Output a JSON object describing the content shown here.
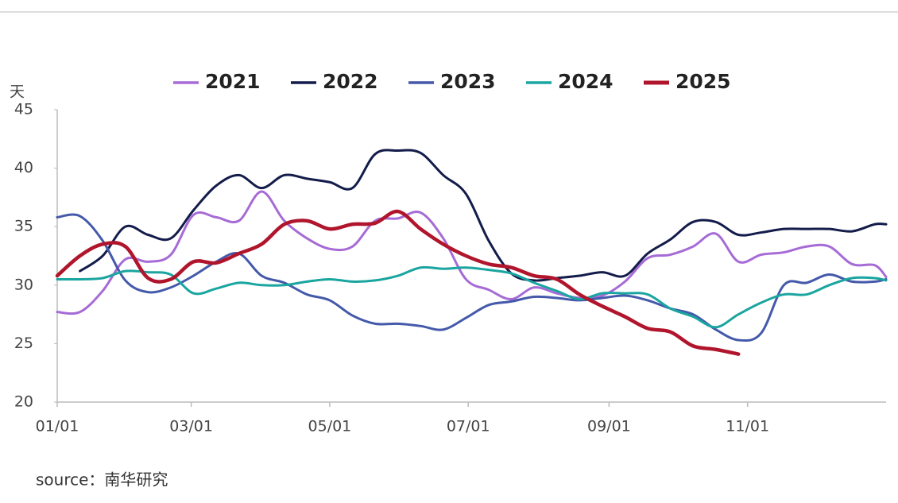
{
  "chart_data": {
    "type": "line",
    "ylabel": "天",
    "source": "source：南华研究",
    "x": [
      0,
      10,
      20,
      30,
      40,
      50,
      60,
      70,
      80,
      90,
      100,
      110,
      120,
      130,
      140,
      150,
      160,
      170,
      180,
      190,
      200,
      210,
      220,
      230,
      240,
      250,
      260,
      270,
      280,
      290,
      300,
      310,
      320,
      330,
      340,
      350,
      360,
      365
    ],
    "xlim": [
      0,
      365
    ],
    "xticks": [
      {
        "value": 0,
        "label": "01/01"
      },
      {
        "value": 59,
        "label": "03/01"
      },
      {
        "value": 120,
        "label": "05/01"
      },
      {
        "value": 181,
        "label": "07/01"
      },
      {
        "value": 243,
        "label": "09/01"
      },
      {
        "value": 304,
        "label": "11/01"
      }
    ],
    "ylim": [
      20,
      45
    ],
    "yticks": [
      20,
      25,
      30,
      35,
      40,
      45
    ],
    "legend": "top",
    "series": [
      {
        "name": "2021",
        "color": "#a66bd6",
        "values": [
          27.7,
          27.7,
          29.5,
          32.2,
          32,
          32.6,
          36,
          35.8,
          35.5,
          38,
          35.5,
          34,
          33.1,
          33.3,
          35.5,
          35.7,
          36.2,
          34,
          30.5,
          29.6,
          28.8,
          29.8,
          29.3,
          28.9,
          29.1,
          30.3,
          32.3,
          32.6,
          33.3,
          34.4,
          32,
          32.6,
          32.8,
          33.3,
          33.3,
          31.8,
          31.7,
          30.7
        ]
      },
      {
        "name": "2022",
        "color": "#131c4a",
        "values": [
          null,
          31.2,
          32.5,
          35.0,
          34.3,
          34.0,
          36.4,
          38.5,
          39.4,
          38.3,
          39.4,
          39.1,
          38.8,
          38.3,
          41.2,
          41.5,
          41.3,
          39.4,
          37.8,
          33.8,
          31.0,
          30.4,
          30.6,
          30.8,
          31.1,
          30.8,
          32.7,
          33.9,
          35.4,
          35.4,
          34.3,
          34.5,
          34.8,
          34.8,
          34.8,
          34.6,
          35.2,
          35.2
        ]
      },
      {
        "name": "2023",
        "color": "#4459aa",
        "values": [
          35.8,
          35.9,
          33.8,
          30.4,
          29.4,
          29.8,
          30.8,
          32,
          32.7,
          30.8,
          30.2,
          29.2,
          28.7,
          27.4,
          26.7,
          26.7,
          26.5,
          26.2,
          27.2,
          28.3,
          28.6,
          29.0,
          28.9,
          28.7,
          28.9,
          29.1,
          28.7,
          28.0,
          27.5,
          26.2,
          25.3,
          25.9,
          30.0,
          30.2,
          30.9,
          30.3,
          30.3,
          30.5
        ]
      },
      {
        "name": "2024",
        "color": "#1aa5a0",
        "values": [
          30.5,
          30.5,
          30.6,
          31.2,
          31.1,
          30.9,
          29.3,
          29.7,
          30.2,
          30.0,
          30.0,
          30.3,
          30.5,
          30.3,
          30.4,
          30.8,
          31.5,
          31.4,
          31.5,
          31.3,
          31.0,
          30.2,
          29.5,
          28.8,
          29.3,
          29.3,
          29.2,
          28.0,
          27.3,
          26.4,
          27.5,
          28.5,
          29.2,
          29.2,
          30.0,
          30.6,
          30.6,
          30.4
        ]
      },
      {
        "name": "2025",
        "color": "#b0152c",
        "values": [
          30.8,
          32.5,
          33.5,
          33.3,
          30.6,
          30.5,
          32,
          31.9,
          32.7,
          33.5,
          35.2,
          35.5,
          34.8,
          35.2,
          35.3,
          36.3,
          34.8,
          33.5,
          32.5,
          31.8,
          31.5,
          30.8,
          30.5,
          29.2,
          28.2,
          27.3,
          26.3,
          26.0,
          24.8,
          24.5,
          24.1,
          null,
          null,
          null,
          null,
          null,
          null,
          null
        ]
      }
    ]
  }
}
